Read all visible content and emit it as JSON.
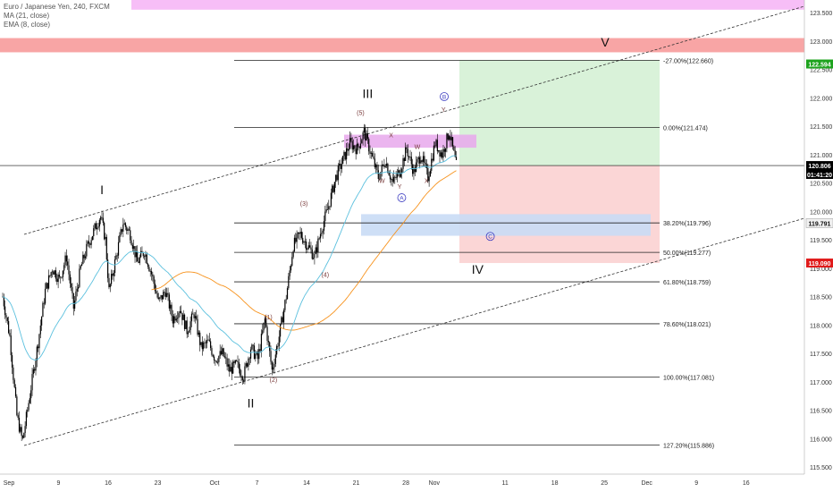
{
  "legend": {
    "title": "Euro / Japanese Yen, 240, FXCM",
    "ma": "MA (21, close)",
    "ema": "EMA (8, close)"
  },
  "colors": {
    "candle": "#000000",
    "ma": "#f7931e",
    "ema": "#5bc0de",
    "pink_zone": "#f6b3f6",
    "red_zone": "#f79b9b",
    "green_box": "#d9f2d9",
    "red_box": "#fbd6d6",
    "blue_box": "#c9dcf5",
    "magenta_box": "#e8a8ec",
    "last_price": "#000000",
    "target_tag": "#1ea31e",
    "stop_tag": "#e01b1b"
  },
  "chart_data": {
    "type": "candlestick",
    "symbol": "Euro / Japanese Yen",
    "timeframe": "240",
    "ylim": [
      115.4,
      123.7
    ],
    "y_ticks": [
      "123.500",
      "123.000",
      "122.500",
      "122.000",
      "121.500",
      "121.000",
      "120.500",
      "120.000",
      "119.500",
      "119.000",
      "118.500",
      "118.000",
      "117.500",
      "117.000",
      "116.500",
      "116.000",
      "115.500"
    ],
    "x_ticks": [
      {
        "label": "Sep",
        "day": 0
      },
      {
        "label": "9",
        "day": 7
      },
      {
        "label": "16",
        "day": 14
      },
      {
        "label": "23",
        "day": 21
      },
      {
        "label": "Oct",
        "day": 29
      },
      {
        "label": "7",
        "day": 35
      },
      {
        "label": "14",
        "day": 42
      },
      {
        "label": "21",
        "day": 49
      },
      {
        "label": "28",
        "day": 56
      },
      {
        "label": "Nov",
        "day": 60
      },
      {
        "label": "11",
        "day": 70
      },
      {
        "label": "18",
        "day": 77
      },
      {
        "label": "25",
        "day": 84
      },
      {
        "label": "Dec",
        "day": 90
      },
      {
        "label": "9",
        "day": 97
      },
      {
        "label": "16",
        "day": 104
      }
    ],
    "price_path": [
      [
        0,
        118.5
      ],
      [
        1,
        117.8
      ],
      [
        2,
        116.4
      ],
      [
        2.8,
        115.95
      ],
      [
        4,
        116.9
      ],
      [
        5,
        117.7
      ],
      [
        6,
        118.6
      ],
      [
        7,
        119.0
      ],
      [
        8,
        118.8
      ],
      [
        9,
        119.2
      ],
      [
        10,
        118.3
      ],
      [
        11,
        119.0
      ],
      [
        12,
        119.4
      ],
      [
        13,
        119.7
      ],
      [
        13.8,
        119.92
      ],
      [
        14.5,
        119.5
      ],
      [
        15,
        118.6
      ],
      [
        16,
        119.2
      ],
      [
        17,
        119.8
      ],
      [
        18,
        119.6
      ],
      [
        19,
        119.1
      ],
      [
        20,
        119.3
      ],
      [
        21,
        118.9
      ],
      [
        22,
        118.4
      ],
      [
        23,
        118.6
      ],
      [
        24,
        118.1
      ],
      [
        25,
        118.3
      ],
      [
        26,
        117.9
      ],
      [
        27,
        118.2
      ],
      [
        28,
        117.6
      ],
      [
        29,
        117.7
      ],
      [
        30,
        117.4
      ],
      [
        31,
        117.5
      ],
      [
        32,
        117.2
      ],
      [
        33,
        117.3
      ],
      [
        34,
        117.1
      ],
      [
        35,
        117.6
      ],
      [
        36,
        117.4
      ],
      [
        37,
        118.1
      ],
      [
        38,
        117.2
      ],
      [
        39,
        117.8
      ],
      [
        40,
        118.5
      ],
      [
        41,
        119.4
      ],
      [
        42,
        119.6
      ],
      [
        43,
        119.4
      ],
      [
        44,
        119.2
      ],
      [
        45,
        119.7
      ],
      [
        46,
        120.1
      ],
      [
        47,
        120.6
      ],
      [
        48,
        120.9
      ],
      [
        49,
        121.2
      ],
      [
        50,
        121.1
      ],
      [
        51,
        121.4
      ],
      [
        52,
        121.0
      ],
      [
        53,
        120.6
      ],
      [
        54,
        120.9
      ],
      [
        55,
        120.5
      ],
      [
        56,
        120.7
      ],
      [
        57,
        121.1
      ],
      [
        58,
        120.7
      ],
      [
        59,
        121.0
      ],
      [
        60,
        120.6
      ],
      [
        61,
        121.2
      ],
      [
        62,
        121.0
      ],
      [
        63,
        121.4
      ],
      [
        64,
        120.8
      ]
    ],
    "moving_averages": [
      {
        "name": "MA (21, close)",
        "period": 21
      },
      {
        "name": "EMA (8, close)",
        "period": 8
      }
    ],
    "fibonacci": [
      {
        "label": "-27.00%(122.660)",
        "price": 122.66
      },
      {
        "label": "0.00%(121.474)",
        "price": 121.474
      },
      {
        "label": "38.20%(119.796)",
        "price": 119.796
      },
      {
        "label": "50.00%(119.277)",
        "price": 119.277
      },
      {
        "label": "61.80%(118.759)",
        "price": 118.759
      },
      {
        "label": "78.60%(118.021)",
        "price": 118.021
      },
      {
        "label": "100.00%(117.081)",
        "price": 117.081
      },
      {
        "label": "127.20%(115.886)",
        "price": 115.886
      }
    ],
    "price_tags": [
      {
        "label": "122.594",
        "price": 122.594,
        "kind": "target"
      },
      {
        "label": "120.806",
        "price": 120.806,
        "kind": "last"
      },
      {
        "label": "01:41:20",
        "price": 120.65,
        "kind": "countdown"
      },
      {
        "label": "119.791",
        "price": 119.791,
        "kind": "level"
      },
      {
        "label": "119.090",
        "price": 119.09,
        "kind": "stop"
      }
    ],
    "zones": [
      {
        "kind": "pink",
        "price_from": 123.55,
        "price_to": 123.75
      },
      {
        "kind": "red",
        "price_from": 122.8,
        "price_to": 123.05
      }
    ],
    "position": {
      "entry": 120.806,
      "target": 122.594,
      "stop": 119.09
    },
    "wave_labels": [
      {
        "label": "I",
        "day": 14,
        "price": 120.3
      },
      {
        "label": "II",
        "day": 35,
        "price": 116.55
      },
      {
        "label": "III",
        "day": 51.5,
        "price": 122.0
      },
      {
        "label": "IV",
        "day": 67,
        "price": 118.9
      },
      {
        "label": "V",
        "day": 85,
        "price": 122.9
      }
    ],
    "sub_wave_labels": [
      {
        "label": "(1)",
        "day": 37.5,
        "price": 118.1
      },
      {
        "label": "(2)",
        "day": 38.2,
        "price": 117.0
      },
      {
        "label": "(3)",
        "day": 42.5,
        "price": 120.1
      },
      {
        "label": "(4)",
        "day": 45.5,
        "price": 118.85
      },
      {
        "label": "(5)",
        "day": 50.5,
        "price": 121.7
      },
      {
        "label": "W",
        "day": 53.5,
        "price": 120.5
      },
      {
        "label": "X",
        "day": 54.8,
        "price": 121.3
      },
      {
        "label": "Y",
        "day": 56,
        "price": 120.4
      },
      {
        "label": "W",
        "day": 58.5,
        "price": 121.1
      },
      {
        "label": "X",
        "day": 59.8,
        "price": 120.5
      },
      {
        "label": "Y",
        "day": 62.2,
        "price": 121.75
      }
    ],
    "circle_labels": [
      {
        "label": "A",
        "day": 56.3,
        "price": 120.2
      },
      {
        "label": "B",
        "day": 62.3,
        "price": 121.98
      },
      {
        "label": "C",
        "day": 68.8,
        "price": 119.52
      }
    ]
  }
}
